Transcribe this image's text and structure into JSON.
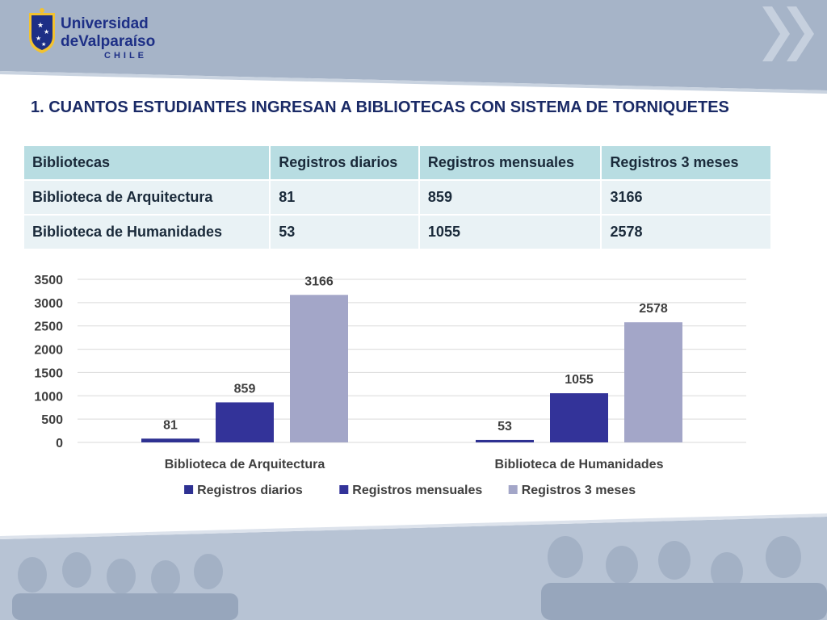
{
  "header": {
    "logo": {
      "line1": "Universidad",
      "line2": "deValparaíso",
      "line3": "CHILE"
    },
    "chevron_icon": "double-chevron-right-icon"
  },
  "title": "1.  CUANTOS ESTUDIANTES INGRESAN A BIBLIOTECAS CON SISTEMA DE TORNIQUETES",
  "table": {
    "headers": [
      "Bibliotecas",
      "Registros diarios",
      "Registros mensuales",
      "Registros 3 meses"
    ],
    "rows": [
      [
        "Biblioteca de Arquitectura",
        "81",
        "859",
        "3166"
      ],
      [
        "Biblioteca de Humanidades",
        "53",
        "1055",
        "2578"
      ]
    ]
  },
  "chart_data": {
    "type": "bar",
    "categories": [
      "Biblioteca de Arquitectura",
      "Biblioteca de Humanidades"
    ],
    "series": [
      {
        "name": "Registros diarios",
        "values": [
          81,
          53
        ],
        "color": "#2e3192"
      },
      {
        "name": "Registros mensuales",
        "values": [
          859,
          1055
        ],
        "color": "#333399"
      },
      {
        "name": "Registros 3 meses",
        "values": [
          3166,
          2578
        ],
        "color": "#a3a6c8"
      }
    ],
    "ylim": [
      0,
      3500
    ],
    "yticks": [
      "0",
      "500",
      "1000",
      "1500",
      "2000",
      "2500",
      "3000",
      "3500"
    ],
    "grid": true,
    "legend": "bottom",
    "data_labels": true
  },
  "colors": {
    "band": "#a6b4c8",
    "title": "#1a2a66",
    "table_header": "#b8dde2",
    "table_row": "#e9f2f5",
    "logo": "#1d2f86"
  }
}
